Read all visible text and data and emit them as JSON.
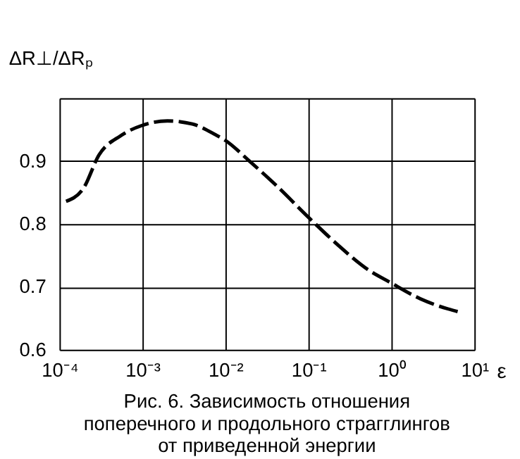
{
  "chart_data": {
    "type": "line",
    "title": "Рис. 6. Зависимость отношения\nпоперечного и продольного страгглингов\nот приведенной энергии",
    "xlabel": "ε",
    "ylabel": "ΔR⊥/ΔRₚ",
    "log": "x",
    "x": [
      0.00012,
      0.000195,
      0.0003,
      0.00054,
      0.001,
      0.002,
      0.004,
      0.0076,
      0.01,
      0.0195,
      0.039,
      0.105,
      0.23,
      0.49,
      1,
      2.24,
      4.8,
      6.6
    ],
    "series": [
      {
        "color": "#000000",
        "values": [
          0.836,
          0.857,
          0.91,
          0.94,
          0.957,
          0.964,
          0.959,
          0.942,
          0.933,
          0.9,
          0.864,
          0.808,
          0.766,
          0.73,
          0.706,
          0.681,
          0.665,
          0.66
        ]
      }
    ],
    "xlim": [
      0.0001,
      10
    ],
    "ylim": [
      0.6,
      1.0
    ],
    "xticks": [
      {
        "value": 0.0001,
        "label": "10⁻⁴"
      },
      {
        "value": 0.001,
        "label": "10⁻³"
      },
      {
        "value": 0.01,
        "label": "10⁻²"
      },
      {
        "value": 0.1,
        "label": "10⁻¹"
      },
      {
        "value": 1,
        "label": "10⁰"
      },
      {
        "value": 10,
        "label": "10¹"
      }
    ],
    "yticks": [
      0.6,
      0.7,
      0.8,
      0.9,
      {
        "value": 1.0,
        "label": null
      }
    ],
    "grid": true,
    "legend": false,
    "marker": "none",
    "line_style": "dashed"
  }
}
